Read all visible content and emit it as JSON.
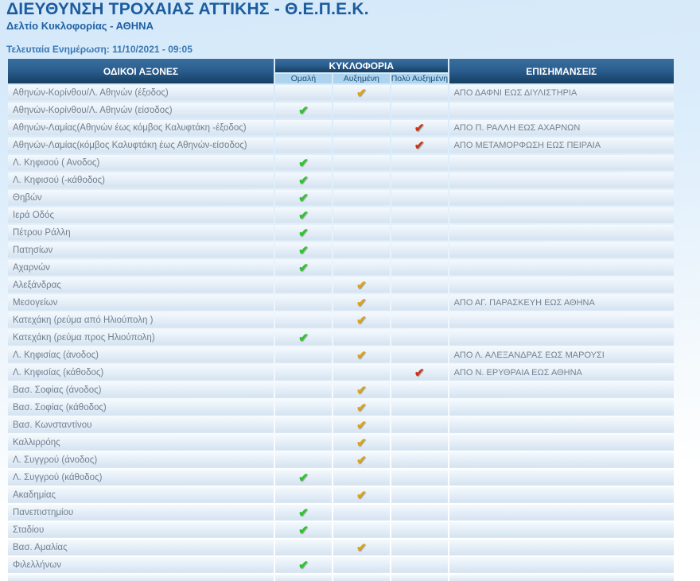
{
  "page": {
    "title": "ΔΙΕΥΘΥΝΣΗ ΤΡΟΧΑΙΑΣ ΑΤΤΙΚΗΣ - Θ.Ε.Π.Ε.Κ.",
    "subtitle": "Δελτίο Κυκλοφορίας - ΑΘΗΝΑ",
    "last_update_label": "Τελευταία Ενημέρωση:",
    "last_update_value": "11/10/2021 - 09:05"
  },
  "colors": {
    "header_gradient_top": "#3a6e9f",
    "header_gradient_bottom": "#153f61",
    "status_normal": "#2cc42c",
    "status_increased": "#dfa214",
    "status_very_increased": "#cc3418"
  },
  "table": {
    "check_icon": "✔",
    "headers": {
      "axes": "ΟΔΙΚΟΙ ΑΞΟΝΕΣ",
      "traffic": "ΚΥΚΛΟΦΟΡΙΑ",
      "remarks": "ΕΠΙΣΗΜΑΝΣΕΙΣ",
      "levels": [
        "Ομαλή",
        "Αυξημένη",
        "Πολύ Αυξημένη"
      ]
    },
    "rows": [
      {
        "axis": "Αθηνών-Κορίνθου/Λ. Αθηνών (έξοδος)",
        "status": "increased",
        "remark": "ΑΠΟ ΔΑΦΝΙ ΕΩΣ ΔΙΥΛΙΣΤΗΡΙΑ"
      },
      {
        "axis": "Αθηνών-Κορίνθου/Λ. Αθηνών (είσοδος)",
        "status": "normal",
        "remark": ""
      },
      {
        "axis": "Αθηνών-Λαμίας(Αθηνών έως κόμβος Καλυφτάκη -έξοδος)",
        "status": "very_increased",
        "remark": "ΑΠΟ Π. ΡΑΛΛΗ ΕΩΣ ΑΧΑΡΝΩΝ"
      },
      {
        "axis": "Αθηνών-Λαμίας(κόμβος Καλυφτάκη έως Αθηνών-είσοδος)",
        "status": "very_increased",
        "remark": "ΑΠΟ ΜΕΤΑΜΟΡΦΩΣΗ ΕΩΣ ΠΕΙΡΑΙΑ"
      },
      {
        "axis": "Λ. Κηφισού ( Ανοδος)",
        "status": "normal",
        "remark": ""
      },
      {
        "axis": "Λ. Κηφισού (-κάθοδος)",
        "status": "normal",
        "remark": ""
      },
      {
        "axis": "Θηβών",
        "status": "normal",
        "remark": ""
      },
      {
        "axis": "Ιερά Οδός",
        "status": "normal",
        "remark": ""
      },
      {
        "axis": "Πέτρου Ράλλη",
        "status": "normal",
        "remark": ""
      },
      {
        "axis": "Πατησίων",
        "status": "normal",
        "remark": ""
      },
      {
        "axis": "Αχαρνών",
        "status": "normal",
        "remark": ""
      },
      {
        "axis": "Αλεξάνδρας",
        "status": "increased",
        "remark": ""
      },
      {
        "axis": "Μεσογείων",
        "status": "increased",
        "remark": "ΑΠΟ ΑΓ. ΠΑΡΑΣΚΕΥΗ ΕΩΣ ΑΘΗΝΑ"
      },
      {
        "axis": "Κατεχάκη (ρεύμα από Ηλιούπολη )",
        "status": "increased",
        "remark": ""
      },
      {
        "axis": "Κατεχάκη (ρεύμα προς Ηλιούπολη)",
        "status": "normal",
        "remark": ""
      },
      {
        "axis": "Λ. Κηφισίας (άνοδος)",
        "status": "increased",
        "remark": "ΑΠΟ Λ. ΑΛΕΞΑΝΔΡΑΣ ΕΩΣ ΜΑΡΟΥΣΙ"
      },
      {
        "axis": "Λ. Κηφισίας (κάθοδος)",
        "status": "very_increased",
        "remark": "ΑΠΟ Ν. ΕΡΥΘΡΑΙΑ ΕΩΣ ΑΘΗΝΑ"
      },
      {
        "axis": "Βασ. Σοφίας (άνοδος)",
        "status": "increased",
        "remark": ""
      },
      {
        "axis": "Βασ. Σοφίας (κάθοδος)",
        "status": "increased",
        "remark": ""
      },
      {
        "axis": "Βασ. Κωνσταντίνου",
        "status": "increased",
        "remark": ""
      },
      {
        "axis": "Καλλιρρόης",
        "status": "increased",
        "remark": ""
      },
      {
        "axis": "Λ. Συγγρού (άνοδος)",
        "status": "increased",
        "remark": ""
      },
      {
        "axis": "Λ. Συγγρού (κάθοδος)",
        "status": "normal",
        "remark": ""
      },
      {
        "axis": "Ακαδημίας",
        "status": "increased",
        "remark": ""
      },
      {
        "axis": "Πανεπιστημίου",
        "status": "normal",
        "remark": ""
      },
      {
        "axis": "Σταδίου",
        "status": "normal",
        "remark": ""
      },
      {
        "axis": "Βασ. Αμαλίας",
        "status": "increased",
        "remark": ""
      },
      {
        "axis": "Φιλελλήνων",
        "status": "normal",
        "remark": ""
      }
    ]
  }
}
